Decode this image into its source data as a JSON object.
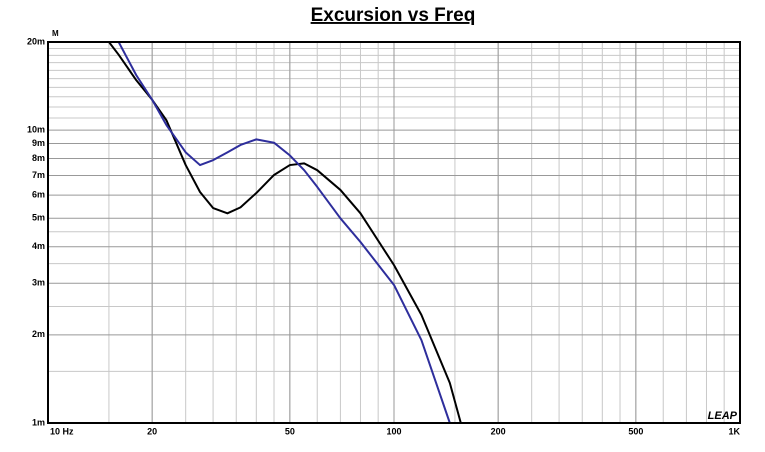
{
  "chart_data": {
    "type": "line",
    "title": "Excursion vs Freq",
    "y_unit": "M",
    "watermark": "LEAP",
    "xscale": "log",
    "yscale": "log",
    "grid": true,
    "xlim": [
      10,
      1000
    ],
    "ylim": [
      0.001,
      0.02
    ],
    "xticks": [
      {
        "value": 10,
        "label": "10 Hz"
      },
      20,
      50,
      100,
      200,
      500,
      {
        "value": 1000,
        "label": "1K"
      }
    ],
    "yticks": [
      {
        "value": 0.001,
        "label": "1m"
      },
      {
        "value": 0.002,
        "label": "2m"
      },
      {
        "value": 0.003,
        "label": "3m"
      },
      {
        "value": 0.004,
        "label": "4m"
      },
      {
        "value": 0.005,
        "label": "5m"
      },
      {
        "value": 0.006,
        "label": "6m"
      },
      {
        "value": 0.007,
        "label": "7m"
      },
      {
        "value": 0.008,
        "label": "8m"
      },
      {
        "value": 0.009,
        "label": "9m"
      },
      {
        "value": 0.01,
        "label": "10m"
      },
      {
        "value": 0.02,
        "label": "20m"
      }
    ],
    "xgrid": [
      10,
      15,
      20,
      25,
      30,
      35,
      40,
      45,
      50,
      60,
      70,
      80,
      90,
      100,
      150,
      200,
      250,
      300,
      350,
      400,
      450,
      500,
      600,
      700,
      800,
      900,
      1000
    ],
    "ygrid": [
      0.0015,
      0.0025,
      0.0035,
      0.0045,
      0.011,
      0.012,
      0.013,
      0.014,
      0.015,
      0.016,
      0.017,
      0.018,
      0.019
    ],
    "x": [
      15,
      16,
      18,
      20,
      22,
      25,
      27.5,
      30,
      33,
      36,
      40,
      45,
      50,
      55,
      60,
      70,
      80,
      100,
      120,
      145,
      156,
      200,
      500,
      1000
    ],
    "series": [
      {
        "color": "#000000",
        "values": [
          0.02,
          0.0181,
          0.0148,
          0.0127,
          0.0108,
          0.0076,
          0.00615,
          0.00542,
          0.0052,
          0.00545,
          0.0061,
          0.00703,
          0.0076,
          0.0077,
          0.0073,
          0.00625,
          0.0052,
          0.00346,
          0.00234,
          0.00137,
          0.001,
          0.001,
          0.001,
          0.001
        ]
      },
      {
        "color": "#2e2e9c",
        "values": [
          null,
          0.02,
          0.0154,
          0.0127,
          0.0104,
          0.0084,
          0.0076,
          0.0079,
          0.0084,
          0.0089,
          0.0093,
          0.00906,
          0.0082,
          0.0073,
          0.0064,
          0.005,
          0.00415,
          0.00296,
          0.00192,
          0.001,
          0.001,
          0.001,
          0.001,
          0.001
        ]
      }
    ]
  }
}
